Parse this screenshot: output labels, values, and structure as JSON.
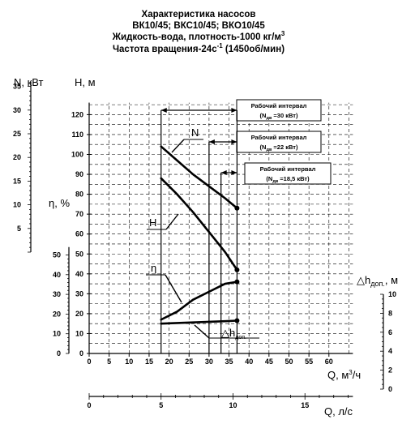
{
  "title": {
    "line1": "Характеристика насосов",
    "line2": "ВК10/45; ВКС10/45; ВКО10/45",
    "line3_main": "Жидкость-вода, плотность-1000 кг/м",
    "line3_sup": "3",
    "line4_main": "Частота вращения-24с",
    "line4_sup": "-1",
    "line4_rest": " (1450об/мин)"
  },
  "axes": {
    "N_label": "N, кВт",
    "eta_label": "η, %",
    "H_label": "H, м",
    "dh_label_main": "△h",
    "dh_label_sub": "доп.",
    "dh_label_unit": ", м",
    "Q1_label_main": "Q, м",
    "Q1_label_sup": "3",
    "Q1_label_rest": "/ч",
    "Q2_label": "Q, л/с"
  },
  "intervals": [
    {
      "title": "Рабочий интервал",
      "sub": "(N",
      "sub_idx": "дв",
      "sub_rest": " =30 кВт)"
    },
    {
      "title": "Рабочий интервал",
      "sub": "(N",
      "sub_idx": "дв",
      "sub_rest": " =22 кВт)"
    },
    {
      "title": "Рабочий интервал",
      "sub": "(N",
      "sub_idx": "дв",
      "sub_rest": " =18,5 кВт)"
    }
  ],
  "curve_labels": {
    "N": "N",
    "H": "H",
    "eta": "η",
    "dh_main": "△h",
    "dh_sub": "доп."
  },
  "chart_data": {
    "type": "line",
    "x_label": "Q, м3/ч",
    "x_ticks": [
      0,
      5,
      10,
      15,
      20,
      25,
      30,
      35,
      40,
      45,
      50,
      55,
      60
    ],
    "H_ticks": [
      0,
      10,
      20,
      30,
      40,
      50,
      60,
      70,
      80,
      90,
      100,
      110,
      120
    ],
    "N_ticks": [
      5,
      10,
      15,
      20,
      25,
      30,
      35
    ],
    "eta_ticks": [
      0,
      10,
      20,
      30,
      40,
      50
    ],
    "dh_ticks": [
      0,
      2,
      4,
      6,
      8,
      10
    ],
    "Q_ls_ticks": [
      0,
      5,
      10,
      15
    ],
    "working_interval_starts": [
      18,
      30,
      33
    ],
    "working_interval_end": 37,
    "series": [
      {
        "key": "N",
        "x": [
          18,
          22,
          26,
          30,
          34,
          37
        ],
        "y": [
          104,
          97,
          90,
          84,
          78,
          73
        ]
      },
      {
        "key": "H",
        "x": [
          18,
          22,
          26,
          30,
          34,
          37
        ],
        "y": [
          88,
          80,
          71,
          61,
          51,
          42
        ]
      },
      {
        "key": "eta",
        "x": [
          18,
          22,
          26,
          30,
          34,
          37
        ],
        "y": [
          17,
          21,
          27,
          31,
          35,
          36
        ]
      },
      {
        "key": "dh",
        "x": [
          18,
          22,
          26,
          30,
          34,
          37
        ],
        "y": [
          15,
          15.3,
          15.6,
          15.9,
          16.2,
          16.5
        ]
      }
    ]
  }
}
